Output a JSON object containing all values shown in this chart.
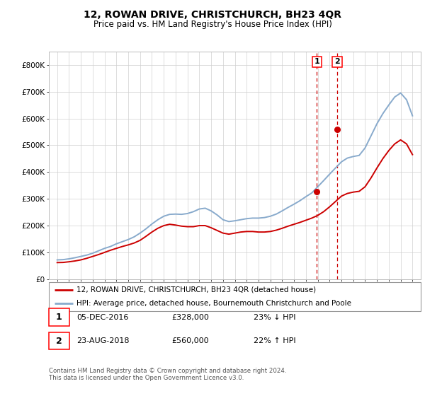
{
  "title": "12, ROWAN DRIVE, CHRISTCHURCH, BH23 4QR",
  "subtitle": "Price paid vs. HM Land Registry's House Price Index (HPI)",
  "ylim": [
    0,
    850000
  ],
  "yticks": [
    0,
    100000,
    200000,
    300000,
    400000,
    500000,
    600000,
    700000,
    800000
  ],
  "ytick_labels": [
    "£0",
    "£100K",
    "£200K",
    "£300K",
    "£400K",
    "£500K",
    "£600K",
    "£700K",
    "£800K"
  ],
  "legend_label_red": "12, ROWAN DRIVE, CHRISTCHURCH, BH23 4QR (detached house)",
  "legend_label_blue": "HPI: Average price, detached house, Bournemouth Christchurch and Poole",
  "transaction1_date": "05-DEC-2016",
  "transaction1_price": "£328,000",
  "transaction1_hpi": "23% ↓ HPI",
  "transaction2_date": "23-AUG-2018",
  "transaction2_price": "£560,000",
  "transaction2_hpi": "22% ↑ HPI",
  "footer": "Contains HM Land Registry data © Crown copyright and database right 2024.\nThis data is licensed under the Open Government Licence v3.0.",
  "line_color_red": "#cc0000",
  "line_color_blue": "#88aacc",
  "vline_color": "#cc0000",
  "transaction1_year": 2016.92,
  "transaction2_year": 2018.64,
  "hpi_x": [
    1995.0,
    1995.5,
    1996.0,
    1996.5,
    1997.0,
    1997.5,
    1998.0,
    1998.5,
    1999.0,
    1999.5,
    2000.0,
    2000.5,
    2001.0,
    2001.5,
    2002.0,
    2002.5,
    2003.0,
    2003.5,
    2004.0,
    2004.5,
    2005.0,
    2005.5,
    2006.0,
    2006.5,
    2007.0,
    2007.5,
    2008.0,
    2008.5,
    2009.0,
    2009.5,
    2010.0,
    2010.5,
    2011.0,
    2011.5,
    2012.0,
    2012.5,
    2013.0,
    2013.5,
    2014.0,
    2014.5,
    2015.0,
    2015.5,
    2016.0,
    2016.5,
    2017.0,
    2017.5,
    2018.0,
    2018.5,
    2019.0,
    2019.5,
    2020.0,
    2020.5,
    2021.0,
    2021.5,
    2022.0,
    2022.5,
    2023.0,
    2023.5,
    2024.0,
    2024.5,
    2025.0
  ],
  "hpi_y": [
    72000,
    73000,
    76000,
    80000,
    85000,
    90000,
    97000,
    106000,
    115000,
    122000,
    132000,
    140000,
    148000,
    158000,
    172000,
    188000,
    206000,
    222000,
    235000,
    242000,
    243000,
    242000,
    245000,
    252000,
    262000,
    265000,
    255000,
    240000,
    222000,
    215000,
    218000,
    222000,
    226000,
    228000,
    228000,
    230000,
    235000,
    243000,
    255000,
    268000,
    280000,
    293000,
    308000,
    322000,
    345000,
    368000,
    392000,
    415000,
    438000,
    452000,
    458000,
    462000,
    490000,
    535000,
    580000,
    618000,
    650000,
    680000,
    695000,
    670000,
    610000
  ],
  "price_x": [
    1995.0,
    1995.5,
    1996.0,
    1996.5,
    1997.0,
    1997.5,
    1998.0,
    1998.5,
    1999.0,
    1999.5,
    2000.0,
    2000.5,
    2001.0,
    2001.5,
    2002.0,
    2002.5,
    2003.0,
    2003.5,
    2004.0,
    2004.5,
    2005.0,
    2005.5,
    2006.0,
    2006.5,
    2007.0,
    2007.5,
    2008.0,
    2008.5,
    2009.0,
    2009.5,
    2010.0,
    2010.5,
    2011.0,
    2011.5,
    2012.0,
    2012.5,
    2013.0,
    2013.5,
    2014.0,
    2014.5,
    2015.0,
    2015.5,
    2016.0,
    2016.5,
    2017.0,
    2017.5,
    2018.0,
    2018.5,
    2019.0,
    2019.5,
    2020.0,
    2020.5,
    2021.0,
    2021.5,
    2022.0,
    2022.5,
    2023.0,
    2023.5,
    2024.0,
    2024.5,
    2025.0
  ],
  "price_y": [
    62000,
    62500,
    65000,
    68000,
    72000,
    78000,
    85000,
    92000,
    100000,
    108000,
    115000,
    122000,
    128000,
    135000,
    145000,
    160000,
    176000,
    190000,
    200000,
    205000,
    202000,
    198000,
    196000,
    196000,
    200000,
    200000,
    192000,
    182000,
    172000,
    168000,
    172000,
    176000,
    178000,
    178000,
    176000,
    176000,
    178000,
    183000,
    190000,
    198000,
    205000,
    212000,
    220000,
    228000,
    238000,
    252000,
    270000,
    290000,
    310000,
    320000,
    325000,
    328000,
    345000,
    378000,
    415000,
    450000,
    480000,
    505000,
    520000,
    505000,
    465000
  ]
}
